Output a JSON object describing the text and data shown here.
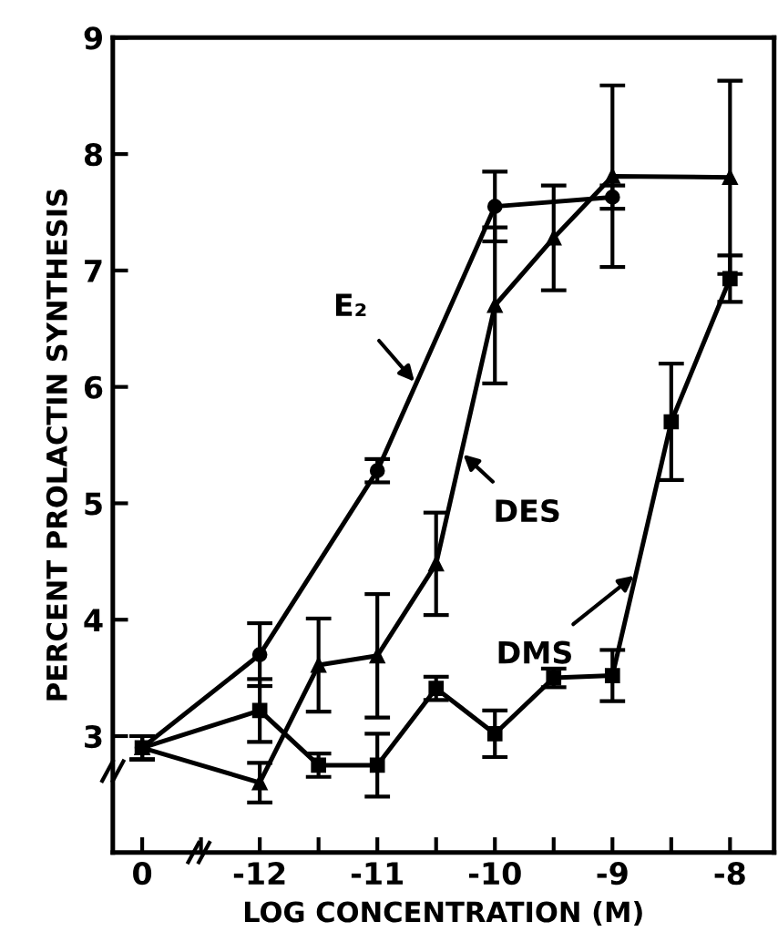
{
  "chart_data": {
    "type": "line",
    "xlabel": "LOG CONCENTRATION (M)",
    "ylabel": "PERCENT PROLACTIN SYNTHESIS",
    "categories": [
      "0",
      null,
      "-12",
      null,
      "-11",
      null,
      "-10",
      null,
      "-9",
      null,
      "-8"
    ],
    "ylim": [
      2,
      9
    ],
    "yticks": [
      3,
      4,
      5,
      6,
      7,
      8,
      9
    ],
    "grid": false,
    "line_style": "solid",
    "series": [
      {
        "name": "E₂",
        "color": "#000000",
        "marker": "circle",
        "values": [
          2.9,
          null,
          3.7,
          null,
          5.28,
          null,
          7.55,
          null,
          7.63,
          null,
          null
        ],
        "errors": [
          0.1,
          null,
          0.27,
          null,
          0.1,
          null,
          0.3,
          null,
          0.1,
          null,
          null
        ]
      },
      {
        "name": "DES",
        "color": "#000000",
        "marker": "triangle",
        "values": [
          2.9,
          null,
          2.6,
          3.61,
          3.69,
          4.48,
          6.7,
          7.28,
          7.81,
          null,
          7.8
        ],
        "errors": [
          0.1,
          null,
          0.17,
          0.4,
          0.53,
          0.44,
          0.67,
          0.45,
          0.78,
          null,
          0.83
        ]
      },
      {
        "name": "DMS",
        "color": "#000000",
        "marker": "square",
        "values": [
          2.9,
          null,
          3.22,
          2.75,
          2.75,
          3.41,
          3.02,
          3.5,
          3.52,
          5.7,
          6.93
        ],
        "errors": [
          0.1,
          null,
          0.27,
          0.1,
          0.27,
          0.1,
          0.2,
          0.08,
          0.22,
          0.5,
          0.2
        ]
      }
    ]
  }
}
